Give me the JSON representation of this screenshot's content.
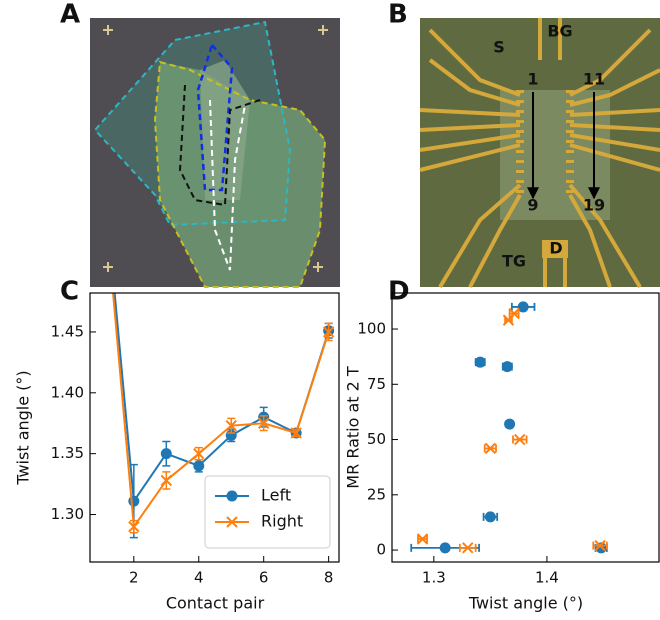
{
  "panel_labels": [
    "A",
    "B",
    "C",
    "D"
  ],
  "photo_labels": [
    "S",
    "BG",
    "1",
    "11",
    "9",
    "19",
    "TG",
    "D"
  ],
  "chart_data": [
    {
      "type": "line",
      "xlabel": "Contact pair",
      "ylabel": "Twist angle (°)",
      "x": [
        1,
        2,
        3,
        4,
        5,
        6,
        7,
        8
      ],
      "xlim": [
        0.65,
        8.35
      ],
      "xticks": [
        2,
        4,
        6,
        8
      ],
      "ylim": [
        1.261,
        1.482
      ],
      "yticks": [
        {
          "value": 1.3,
          "label": "1.30"
        },
        1.35,
        {
          "value": 1.4,
          "label": "1.40"
        },
        1.45
      ],
      "legend": "lower right",
      "series": [
        {
          "name": "Left",
          "color": "#1f77b4",
          "marker": "o",
          "values": [
            1.6,
            1.311,
            1.35,
            1.34,
            1.365,
            1.38,
            1.367,
            1.451
          ],
          "errors": [
            0.01,
            0.03,
            0.01,
            0.005,
            0.005,
            0.008,
            0.003,
            0.006
          ]
        },
        {
          "name": "Right",
          "color": "#ff7f0e",
          "marker": "x",
          "values": [
            1.59,
            1.29,
            1.328,
            1.35,
            1.373,
            1.375,
            1.367,
            1.45
          ],
          "errors": [
            0.01,
            0.005,
            0.007,
            0.005,
            0.006,
            0.006,
            0.003,
            0.007
          ]
        }
      ]
    },
    {
      "type": "scatter",
      "xlabel": "Twist angle (°)",
      "ylabel": "MR Ratio at 2 T",
      "xlim": [
        1.263,
        1.5
      ],
      "ylim": [
        -5.4,
        116.3
      ],
      "xticks": [
        1.3,
        1.4
      ],
      "yticks": [
        0,
        25,
        50,
        75,
        100
      ],
      "series": [
        {
          "color": "#1f77b4",
          "marker": "o",
          "x": [
            1.31,
            1.35,
            1.367,
            1.365,
            1.341,
            1.379,
            1.448
          ],
          "values": [
            1,
            15,
            57,
            83,
            85,
            110,
            1
          ],
          "xerr": [
            0.03,
            0.006,
            0,
            0.004,
            0.004,
            0.01,
            0.005
          ]
        },
        {
          "color": "#ff7f0e",
          "marker": "x",
          "x": [
            1.29,
            1.33,
            1.35,
            1.376,
            1.366,
            1.371,
            1.447
          ],
          "values": [
            5,
            1,
            46,
            50,
            104,
            107,
            2
          ],
          "xerr": [
            0.004,
            0.007,
            0.005,
            0.006,
            0.003,
            0.004,
            0.006
          ]
        }
      ]
    }
  ]
}
